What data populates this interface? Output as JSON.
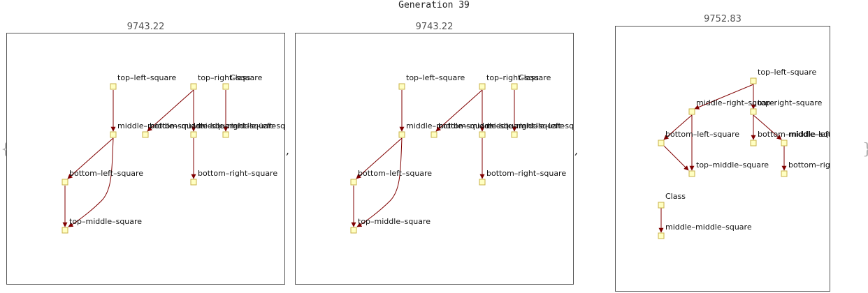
{
  "title": "Generation 39",
  "brace_open": "{",
  "brace_close": "}",
  "separator": ",",
  "panels": [
    {
      "score": "9743.22",
      "nodes": [
        {
          "label": "top–left–square"
        },
        {
          "label": "top–right–square"
        },
        {
          "label": "Class"
        },
        {
          "label": "middle–middle–square"
        },
        {
          "label": "bottom–middle–square"
        },
        {
          "label": "middle–right–square"
        },
        {
          "label": "middle–left–square"
        },
        {
          "label": "bottom–left–square"
        },
        {
          "label": "bottom–right–square"
        },
        {
          "label": "top–middle–square"
        }
      ]
    },
    {
      "score": "9743.22",
      "nodes": [
        {
          "label": "top–left–square"
        },
        {
          "label": "top–right–square"
        },
        {
          "label": "Class"
        },
        {
          "label": "middle–middle–square"
        },
        {
          "label": "bottom–middle–square"
        },
        {
          "label": "middle–right–square"
        },
        {
          "label": "middle–left–square"
        },
        {
          "label": "bottom–left–square"
        },
        {
          "label": "bottom–right–square"
        },
        {
          "label": "top–middle–square"
        }
      ]
    },
    {
      "score": "9752.83",
      "nodes": [
        {
          "label": "top–left–square"
        },
        {
          "label": "middle–right–square"
        },
        {
          "label": "top–right–square"
        },
        {
          "label": "bottom–left–square"
        },
        {
          "label": "bottom–middle–square"
        },
        {
          "label": "middle–left–square"
        },
        {
          "label": "top–middle–square"
        },
        {
          "label": "bottom–right–square"
        },
        {
          "label": "Class"
        },
        {
          "label": "middle–middle–square"
        }
      ]
    }
  ]
}
